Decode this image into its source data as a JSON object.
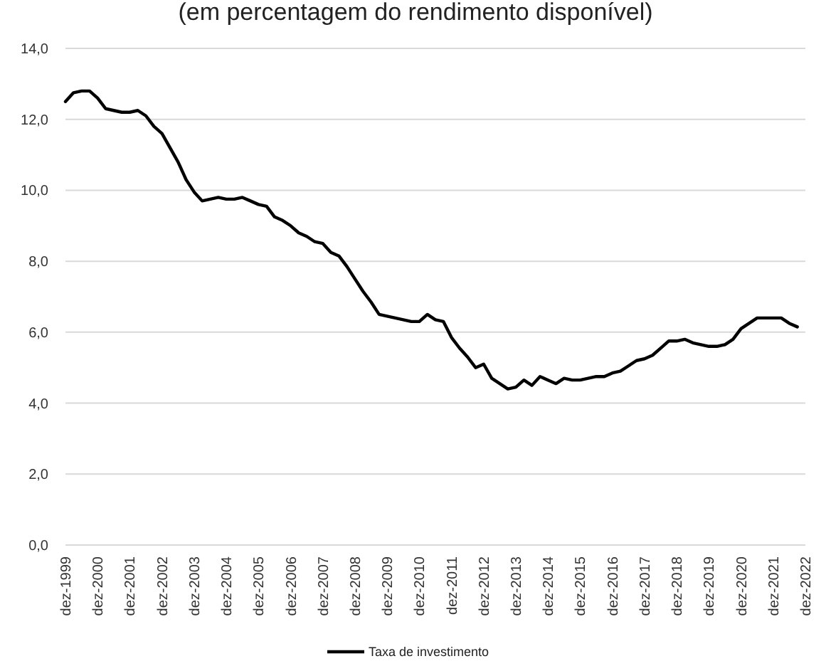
{
  "chart_data": {
    "type": "line",
    "title": "(em percentagem do rendimento disponível)",
    "categories": [
      "dez-1999",
      null,
      null,
      null,
      "dez-2000",
      null,
      null,
      null,
      "dez-2001",
      null,
      null,
      null,
      "dez-2002",
      null,
      null,
      null,
      "dez-2003",
      null,
      null,
      null,
      "dez-2004",
      null,
      null,
      null,
      "dez-2005",
      null,
      null,
      null,
      "dez-2006",
      null,
      null,
      null,
      "dez-2007",
      null,
      null,
      null,
      "dez-2008",
      null,
      null,
      null,
      "dez-2009",
      null,
      null,
      null,
      "dez-2010",
      null,
      null,
      null,
      "dez-2011",
      null,
      null,
      null,
      "dez-2012",
      null,
      null,
      null,
      "dez-2013",
      null,
      null,
      null,
      "dez-2014",
      null,
      null,
      null,
      "dez-2015",
      null,
      null,
      null,
      "dez-2016",
      null,
      null,
      null,
      "dez-2017",
      null,
      null,
      null,
      "dez-2018",
      null,
      null,
      null,
      "dez-2019",
      null,
      null,
      null,
      "dez-2020",
      null,
      null,
      null,
      "dez-2021",
      null,
      null,
      null,
      "dez-2022"
    ],
    "series": [
      {
        "name": "Taxa de investimento",
        "color": "#000000",
        "values": [
          12.5,
          12.75,
          12.8,
          12.8,
          12.6,
          12.3,
          12.25,
          12.2,
          12.2,
          12.25,
          12.1,
          11.8,
          11.6,
          11.2,
          10.8,
          10.3,
          9.95,
          9.7,
          9.75,
          9.8,
          9.75,
          9.75,
          9.8,
          9.7,
          9.6,
          9.55,
          9.25,
          9.15,
          9.0,
          8.8,
          8.7,
          8.55,
          8.5,
          8.25,
          8.15,
          7.85,
          7.5,
          7.15,
          6.85,
          6.5,
          6.45,
          6.4,
          6.35,
          6.3,
          6.3,
          6.5,
          6.35,
          6.3,
          5.85,
          5.55,
          5.3,
          5.0,
          5.1,
          4.7,
          4.55,
          4.4,
          4.45,
          4.65,
          4.5,
          4.75,
          4.65,
          4.55,
          4.7,
          4.65,
          4.65,
          4.7,
          4.75,
          4.75,
          4.85,
          4.9,
          5.05,
          5.2,
          5.25,
          5.35,
          5.55,
          5.75,
          5.75,
          5.8,
          5.7,
          5.65,
          5.6,
          5.6,
          5.65,
          5.8,
          6.1,
          6.25,
          6.4,
          6.4,
          6.4,
          6.4,
          6.25,
          6.15,
          null
        ]
      }
    ],
    "ylim": [
      0,
      14
    ],
    "yticks": [
      {
        "value": 0,
        "label": "0,0"
      },
      {
        "value": 2,
        "label": "2,0"
      },
      {
        "value": 4,
        "label": "4,0"
      },
      {
        "value": 6,
        "label": "6,0"
      },
      {
        "value": 8,
        "label": "8,0"
      },
      {
        "value": 10,
        "label": "10,0"
      },
      {
        "value": 12,
        "label": "12,0"
      },
      {
        "value": 14,
        "label": "14,0"
      }
    ],
    "grid": "y",
    "legend": "bottom",
    "marker": "none",
    "line_style": "solid"
  }
}
